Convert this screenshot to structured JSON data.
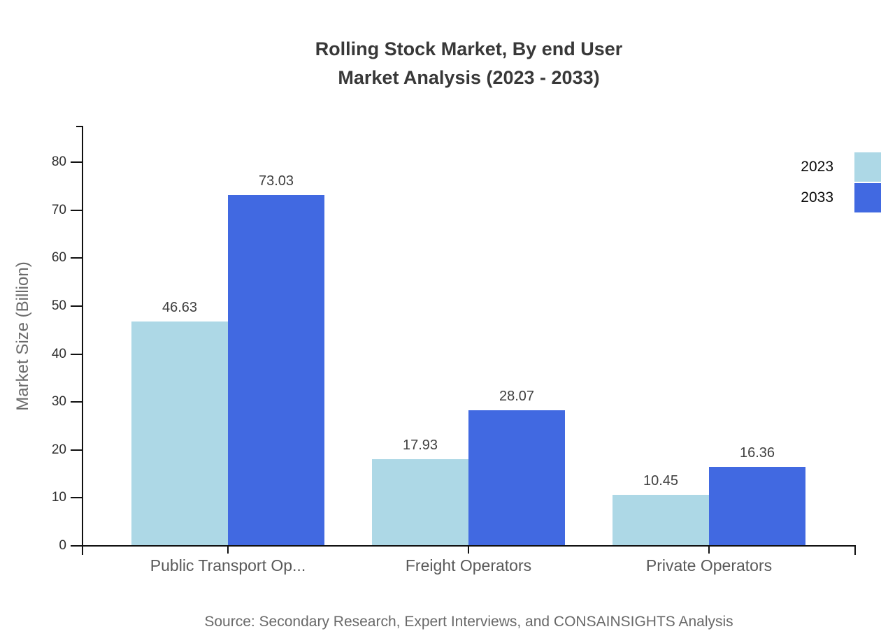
{
  "title": {
    "line1": "Rolling Stock Market, By end User",
    "line2": "Market Analysis (2023 - 2033)"
  },
  "source": "Source: Secondary Research, Expert Interviews, and CONSAINSIGHTS Analysis",
  "chart_data": {
    "type": "bar",
    "title": "Rolling Stock Market, By end User Market Analysis (2023 - 2033)",
    "categories": [
      "Public Transport Op...",
      "Freight Operators",
      "Private Operators"
    ],
    "series": [
      {
        "name": "2023",
        "color": "#ADD8E6",
        "values": [
          46.63,
          17.93,
          10.45
        ]
      },
      {
        "name": "2033",
        "color": "#4169E1",
        "values": [
          73.03,
          28.07,
          16.36
        ]
      }
    ],
    "value_labels": [
      "46.63",
      "73.03",
      "17.93",
      "28.07",
      "10.45",
      "16.36"
    ],
    "xlabel": "",
    "ylabel": "Market Size (Billion)",
    "ylim": [
      0,
      80
    ],
    "yticks": [
      0,
      10,
      20,
      30,
      40,
      50,
      60,
      70,
      80
    ],
    "grid": false,
    "legend_position": "top-right",
    "axis_color": "#111111",
    "bar_label_color": "#3f3f3f"
  }
}
